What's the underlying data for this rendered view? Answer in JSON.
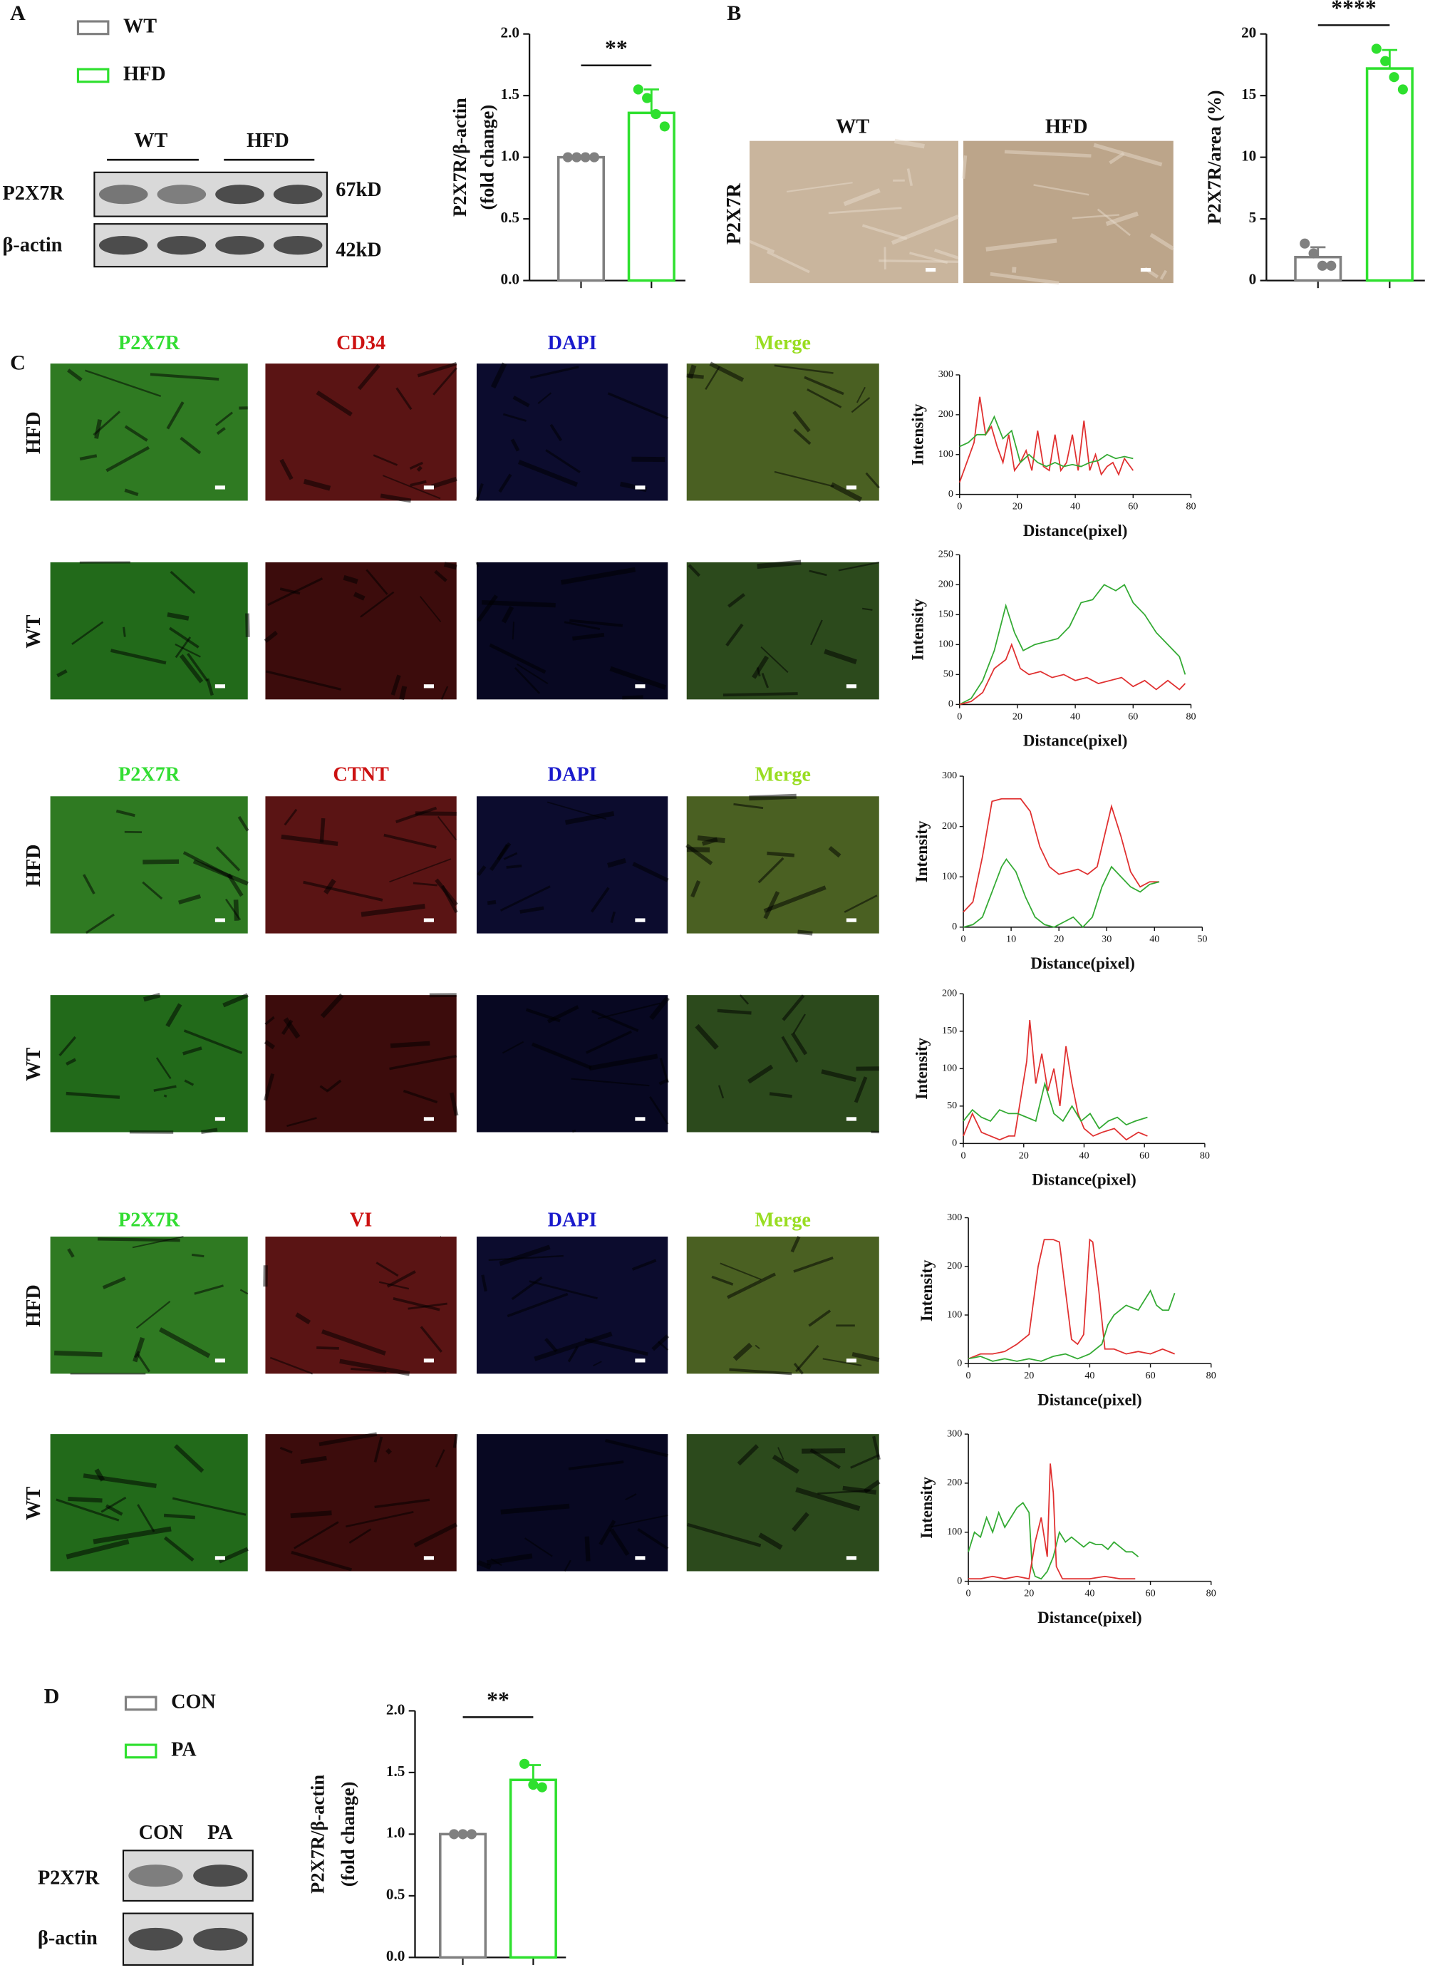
{
  "panel_labels": [
    "A",
    "B",
    "C",
    "D"
  ],
  "blot_a": {
    "lanes": [
      "WT",
      "HFD"
    ],
    "rows": [
      "P2X7R",
      "β-actin"
    ],
    "sizes": [
      "67kD",
      "42kD"
    ]
  },
  "ihc_b": {
    "columns": [
      "WT",
      "HFD"
    ],
    "row": "P2X7R"
  },
  "if_c": {
    "groups": [
      {
        "columns": [
          "P2X7R",
          "CD34",
          "DAPI",
          "Merge"
        ],
        "rows": [
          "HFD",
          "WT"
        ]
      },
      {
        "columns": [
          "P2X7R",
          "CTNT",
          "DAPI",
          "Merge"
        ],
        "rows": [
          "HFD",
          "WT"
        ]
      },
      {
        "columns": [
          "P2X7R",
          "VI",
          "DAPI",
          "Merge"
        ],
        "rows": [
          "HFD",
          "WT"
        ]
      }
    ]
  },
  "blot_d": {
    "lanes": [
      "CON",
      "PA"
    ],
    "rows": [
      "P2X7R",
      "β-actin"
    ]
  },
  "chart_data": [
    {
      "type": "bar",
      "ylabel": [
        "P2X7R/β-actin",
        "(fold change)"
      ],
      "annotation": "**",
      "legend": true,
      "ylim": [
        0,
        2
      ],
      "yticks": [
        {
          "value": 0,
          "label": "0.0"
        },
        0.5,
        {
          "value": 1,
          "label": "1.0"
        },
        1.5,
        {
          "value": 2,
          "label": "2.0"
        }
      ],
      "series": [
        {
          "name": "WT",
          "color": "#808080",
          "values": [
            1.0
          ],
          "errors": [
            0.01
          ],
          "points": [
            [
              1.0,
              1.0,
              1.0,
              1.0
            ]
          ]
        },
        {
          "name": "HFD",
          "color": "#2ee02e",
          "values": [
            1.36
          ],
          "errors": [
            0.19
          ],
          "points": [
            [
              1.55,
              1.48,
              1.35,
              1.25
            ]
          ]
        }
      ]
    },
    {
      "type": "bar",
      "ylabel": [
        "P2X7R/area (%)"
      ],
      "annotation": "****",
      "legend": false,
      "ylim": [
        0,
        20
      ],
      "yticks": [
        0,
        5,
        10,
        15,
        20
      ],
      "series": [
        {
          "name": "WT",
          "color": "#808080",
          "values": [
            1.9
          ],
          "errors": [
            0.8
          ],
          "points": [
            [
              3.0,
              2.2,
              1.2,
              1.2
            ]
          ]
        },
        {
          "name": "HFD",
          "color": "#2ee02e",
          "values": [
            17.2
          ],
          "errors": [
            1.5
          ],
          "points": [
            [
              18.8,
              17.8,
              16.5,
              15.5
            ]
          ]
        }
      ]
    },
    {
      "type": "line",
      "xlabel": "Distance(pixel)",
      "ylabel": "Intensity",
      "xlim": [
        0,
        80
      ],
      "xticks": [
        0,
        20,
        40,
        60,
        80
      ],
      "ylim": [
        0,
        300
      ],
      "yticks": [
        0,
        100,
        200,
        300
      ],
      "series": [
        {
          "color": "#e03030",
          "x": [
            0,
            3,
            5,
            7,
            9,
            11,
            13,
            15,
            17,
            19,
            21,
            23,
            25,
            27,
            29,
            31,
            33,
            35,
            37,
            39,
            41,
            43,
            45,
            47,
            49,
            51,
            53,
            55,
            57,
            60
          ],
          "values": [
            30,
            90,
            130,
            245,
            150,
            170,
            120,
            80,
            150,
            60,
            80,
            110,
            60,
            160,
            70,
            60,
            150,
            60,
            80,
            150,
            60,
            185,
            60,
            100,
            50,
            70,
            80,
            50,
            90,
            60
          ]
        },
        {
          "color": "#33aa33",
          "x": [
            0,
            3,
            6,
            9,
            12,
            15,
            18,
            21,
            24,
            27,
            30,
            33,
            36,
            39,
            42,
            45,
            48,
            51,
            54,
            57,
            60
          ],
          "values": [
            120,
            130,
            150,
            150,
            195,
            140,
            160,
            80,
            100,
            80,
            70,
            80,
            70,
            75,
            70,
            80,
            85,
            100,
            90,
            95,
            90
          ]
        }
      ]
    },
    {
      "type": "line",
      "xlabel": "Distance(pixel)",
      "ylabel": "Intensity",
      "xlim": [
        0,
        80
      ],
      "xticks": [
        0,
        20,
        40,
        60,
        80
      ],
      "ylim": [
        0,
        250
      ],
      "yticks": [
        0,
        50,
        100,
        150,
        200,
        250
      ],
      "series": [
        {
          "color": "#33aa33",
          "x": [
            0,
            4,
            8,
            12,
            16,
            19,
            22,
            26,
            30,
            34,
            38,
            42,
            46,
            50,
            54,
            57,
            60,
            64,
            68,
            72,
            76,
            78
          ],
          "values": [
            0,
            10,
            40,
            90,
            165,
            120,
            90,
            100,
            105,
            110,
            130,
            170,
            175,
            200,
            190,
            200,
            170,
            150,
            120,
            100,
            80,
            50
          ]
        },
        {
          "color": "#e03030",
          "x": [
            0,
            4,
            8,
            12,
            16,
            18,
            21,
            24,
            28,
            32,
            36,
            40,
            44,
            48,
            52,
            56,
            60,
            64,
            68,
            72,
            76,
            78
          ],
          "values": [
            0,
            5,
            20,
            60,
            75,
            100,
            60,
            50,
            55,
            45,
            50,
            40,
            45,
            35,
            40,
            45,
            30,
            40,
            25,
            40,
            25,
            35
          ]
        }
      ]
    },
    {
      "type": "line",
      "xlabel": "Distance(pixel)",
      "ylabel": "Intensity",
      "xlim": [
        0,
        50
      ],
      "xticks": [
        0,
        10,
        20,
        30,
        40,
        50
      ],
      "ylim": [
        0,
        300
      ],
      "yticks": [
        0,
        100,
        200,
        300
      ],
      "series": [
        {
          "color": "#e03030",
          "x": [
            0,
            2,
            4,
            6,
            8,
            10,
            12,
            14,
            16,
            18,
            20,
            22,
            24,
            26,
            28,
            30,
            31,
            33,
            35,
            37,
            39,
            41
          ],
          "values": [
            30,
            50,
            140,
            250,
            255,
            255,
            255,
            230,
            160,
            120,
            105,
            110,
            115,
            105,
            120,
            200,
            240,
            180,
            110,
            80,
            90,
            90
          ]
        },
        {
          "color": "#33aa33",
          "x": [
            0,
            2,
            4,
            6,
            8,
            9,
            11,
            13,
            15,
            17,
            19,
            21,
            23,
            25,
            27,
            29,
            31,
            33,
            35,
            37,
            39,
            41
          ],
          "values": [
            0,
            5,
            20,
            70,
            120,
            135,
            110,
            60,
            20,
            5,
            0,
            10,
            20,
            0,
            20,
            80,
            120,
            100,
            80,
            70,
            85,
            90
          ]
        }
      ]
    },
    {
      "type": "line",
      "xlabel": "Distance(pixel)",
      "ylabel": "Intensity",
      "xlim": [
        0,
        80
      ],
      "xticks": [
        0,
        20,
        40,
        60,
        80
      ],
      "ylim": [
        0,
        200
      ],
      "yticks": [
        0,
        50,
        100,
        150,
        200
      ],
      "series": [
        {
          "color": "#e03030",
          "x": [
            0,
            3,
            6,
            9,
            12,
            15,
            17,
            19,
            21,
            22,
            24,
            26,
            28,
            30,
            32,
            34,
            36,
            38,
            40,
            43,
            46,
            50,
            54,
            58,
            61
          ],
          "values": [
            10,
            40,
            15,
            10,
            5,
            10,
            10,
            60,
            110,
            165,
            80,
            120,
            70,
            100,
            50,
            130,
            80,
            40,
            20,
            10,
            15,
            20,
            5,
            15,
            10
          ]
        },
        {
          "color": "#33aa33",
          "x": [
            0,
            3,
            6,
            9,
            12,
            15,
            18,
            21,
            24,
            27,
            30,
            33,
            36,
            39,
            42,
            45,
            48,
            51,
            54,
            57,
            61
          ],
          "values": [
            30,
            45,
            35,
            30,
            45,
            40,
            40,
            35,
            30,
            80,
            40,
            30,
            50,
            30,
            40,
            20,
            30,
            35,
            25,
            30,
            35
          ]
        }
      ]
    },
    {
      "type": "line",
      "xlabel": "Distance(pixel)",
      "ylabel": "Intensity",
      "xlim": [
        0,
        80
      ],
      "xticks": [
        0,
        20,
        40,
        60,
        80
      ],
      "ylim": [
        0,
        300
      ],
      "yticks": [
        0,
        100,
        200,
        300
      ],
      "series": [
        {
          "color": "#e03030",
          "x": [
            0,
            4,
            8,
            12,
            16,
            20,
            23,
            25,
            28,
            30,
            32,
            34,
            36,
            38,
            40,
            41,
            43,
            45,
            48,
            52,
            56,
            60,
            64,
            68
          ],
          "values": [
            10,
            20,
            20,
            25,
            40,
            60,
            200,
            255,
            255,
            250,
            150,
            50,
            40,
            60,
            255,
            250,
            150,
            30,
            30,
            20,
            25,
            20,
            30,
            20
          ]
        },
        {
          "color": "#33aa33",
          "x": [
            0,
            4,
            8,
            12,
            16,
            20,
            24,
            28,
            32,
            36,
            40,
            44,
            46,
            48,
            52,
            56,
            60,
            62,
            64,
            66,
            68
          ],
          "values": [
            10,
            15,
            5,
            10,
            5,
            10,
            5,
            15,
            20,
            10,
            20,
            40,
            80,
            100,
            120,
            110,
            150,
            120,
            110,
            110,
            145
          ]
        }
      ]
    },
    {
      "type": "line",
      "xlabel": "Distance(pixel)",
      "ylabel": "Intensity",
      "xlim": [
        0,
        80
      ],
      "xticks": [
        0,
        20,
        40,
        60,
        80
      ],
      "ylim": [
        0,
        300
      ],
      "yticks": [
        0,
        100,
        200,
        300
      ],
      "series": [
        {
          "color": "#33aa33",
          "x": [
            0,
            2,
            4,
            6,
            8,
            10,
            12,
            14,
            16,
            18,
            20,
            21,
            22,
            24,
            26,
            28,
            30,
            32,
            34,
            36,
            38,
            40,
            42,
            44,
            46,
            48,
            50,
            52,
            54,
            56
          ],
          "values": [
            60,
            100,
            90,
            130,
            100,
            140,
            110,
            130,
            150,
            160,
            140,
            30,
            10,
            5,
            20,
            50,
            100,
            80,
            90,
            80,
            70,
            80,
            75,
            75,
            65,
            80,
            70,
            60,
            60,
            50
          ]
        },
        {
          "color": "#e03030",
          "x": [
            0,
            4,
            8,
            12,
            16,
            20,
            22,
            24,
            26,
            27,
            28,
            29,
            31,
            35,
            40,
            45,
            50,
            55
          ],
          "values": [
            5,
            5,
            10,
            5,
            10,
            5,
            80,
            130,
            50,
            240,
            180,
            30,
            5,
            5,
            5,
            10,
            5,
            5
          ]
        }
      ]
    },
    {
      "type": "bar",
      "ylabel": [
        "P2X7R/β-actin",
        "(fold change)"
      ],
      "annotation": "**",
      "legend": true,
      "ylim": [
        0,
        2
      ],
      "yticks": [
        {
          "value": 0,
          "label": "0.0"
        },
        0.5,
        {
          "value": 1,
          "label": "1.0"
        },
        1.5,
        {
          "value": 2,
          "label": "2.0"
        }
      ],
      "series": [
        {
          "name": "CON",
          "color": "#808080",
          "values": [
            1.0
          ],
          "errors": [
            0.01
          ],
          "points": [
            [
              1.0,
              1.0,
              1.0
            ]
          ]
        },
        {
          "name": "PA",
          "color": "#2ee02e",
          "values": [
            1.44
          ],
          "errors": [
            0.12
          ],
          "points": [
            [
              1.57,
              1.4,
              1.38
            ]
          ]
        }
      ]
    }
  ]
}
